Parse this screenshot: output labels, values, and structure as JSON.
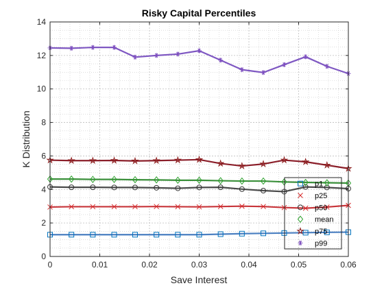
{
  "chart_data": {
    "type": "line",
    "title": "Risky Capital Percentiles",
    "xlabel": "Save Interest",
    "ylabel": "K Distribution",
    "xlim": [
      0,
      0.06
    ],
    "ylim": [
      0,
      14
    ],
    "xticks": [
      0,
      0.01,
      0.02,
      0.03,
      0.04,
      0.05,
      0.06
    ],
    "xtick_labels": [
      "0",
      "0.01",
      "0.02",
      "0.03",
      "0.04",
      "0.05",
      "0.06"
    ],
    "yticks": [
      0,
      2,
      4,
      6,
      8,
      10,
      12,
      14
    ],
    "ytick_labels": [
      "0",
      "2",
      "4",
      "6",
      "8",
      "10",
      "12",
      "14"
    ],
    "grid": true,
    "minor_grid": true,
    "legend_position": "bottom-right",
    "x": [
      0,
      0.0043,
      0.0086,
      0.0129,
      0.0171,
      0.0214,
      0.0257,
      0.03,
      0.0343,
      0.0386,
      0.0429,
      0.0471,
      0.0514,
      0.0557,
      0.06
    ],
    "series": [
      {
        "name": "p1",
        "marker": "square",
        "values": [
          1.3,
          1.3,
          1.3,
          1.3,
          1.3,
          1.3,
          1.3,
          1.3,
          1.33,
          1.36,
          1.38,
          1.4,
          1.42,
          1.44,
          1.45
        ]
      },
      {
        "name": "p25",
        "marker": "x",
        "values": [
          2.95,
          2.97,
          2.97,
          2.97,
          2.97,
          2.98,
          2.97,
          2.96,
          2.98,
          3.0,
          2.98,
          2.92,
          2.88,
          2.95,
          3.05
        ]
      },
      {
        "name": "p50",
        "marker": "circle",
        "values": [
          4.15,
          4.13,
          4.13,
          4.12,
          4.12,
          4.1,
          4.07,
          4.12,
          4.13,
          4.02,
          3.93,
          3.87,
          4.15,
          4.12,
          4.05
        ]
      },
      {
        "name": "mean",
        "marker": "diamond",
        "values": [
          4.62,
          4.62,
          4.6,
          4.6,
          4.58,
          4.57,
          4.55,
          4.55,
          4.52,
          4.5,
          4.5,
          4.45,
          4.42,
          4.4,
          4.38
        ]
      },
      {
        "name": "p75",
        "marker": "star",
        "values": [
          5.75,
          5.72,
          5.72,
          5.73,
          5.7,
          5.72,
          5.75,
          5.78,
          5.55,
          5.4,
          5.52,
          5.75,
          5.65,
          5.45,
          5.25
        ]
      },
      {
        "name": "p99",
        "marker": "asterisk",
        "values": [
          12.45,
          12.43,
          12.48,
          12.48,
          11.9,
          12.0,
          12.08,
          12.28,
          11.72,
          11.15,
          10.98,
          11.45,
          11.92,
          11.35,
          10.92
        ]
      }
    ],
    "colors": {
      "p1": "#0072BD",
      "p25": "#D62728",
      "p50": "#333333",
      "mean": "#2CA02C",
      "p75": "#8B1A1A",
      "p99": "#7E4FBF"
    },
    "line_colors": {
      "p1": "#4A7FC1",
      "p25": "#C8353A",
      "p50": "#4A4A4A",
      "mean": "#3A8F3A",
      "p75": "#8B1F2A",
      "p99": "#7E57C2"
    }
  }
}
